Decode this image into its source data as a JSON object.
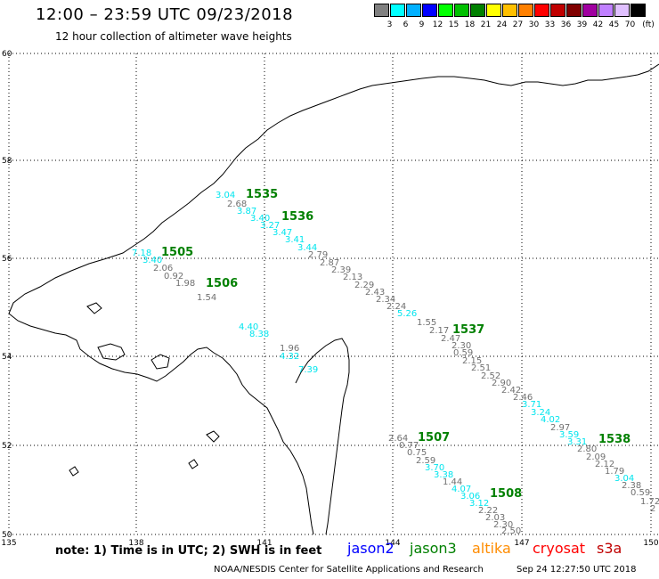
{
  "header": {
    "title": "12:00 – 23:59 UTC 09/23/2018",
    "subtitle": "12 hour collection of altimeter wave heights"
  },
  "legend": {
    "unit": "(ft)",
    "colors": [
      "#808080",
      "#00ffff",
      "#00b0ff",
      "#0000ff",
      "#00ff00",
      "#00c000",
      "#008000",
      "#ffff00",
      "#ffc000",
      "#ff8000",
      "#ff0000",
      "#c00000",
      "#800000",
      "#a000a0",
      "#c080ff",
      "#e0c0ff",
      "#000000"
    ],
    "labels": [
      "3",
      "6",
      "9",
      "12",
      "15",
      "18",
      "21",
      "24",
      "27",
      "30",
      "33",
      "36",
      "39",
      "42",
      "45",
      "70"
    ]
  },
  "axes": {
    "lat_labels": [
      "60",
      "58",
      "56",
      "54",
      "52",
      "50"
    ],
    "lon_labels": [
      "135",
      "138",
      "141",
      "144",
      "147",
      "150"
    ]
  },
  "passes": [
    {
      "label": "1535"
    },
    {
      "label": "1536"
    },
    {
      "label": "1505"
    },
    {
      "label": "1506"
    },
    {
      "label": "1537"
    },
    {
      "label": "1507"
    },
    {
      "label": "1538"
    },
    {
      "label": "1508"
    }
  ],
  "wave_heights": [
    {
      "v": "3.04",
      "c": "cyan"
    },
    {
      "v": "2.68",
      "c": "gray"
    },
    {
      "v": "3.87",
      "c": "cyan"
    },
    {
      "v": "3.40",
      "c": "cyan"
    },
    {
      "v": "3.27",
      "c": "cyan"
    },
    {
      "v": "3.47",
      "c": "cyan"
    },
    {
      "v": "3.41",
      "c": "cyan"
    },
    {
      "v": "3.44",
      "c": "cyan"
    },
    {
      "v": "2.79",
      "c": "gray"
    },
    {
      "v": "2.87",
      "c": "gray"
    },
    {
      "v": "2.39",
      "c": "gray"
    },
    {
      "v": "2.13",
      "c": "gray"
    },
    {
      "v": "2.29",
      "c": "gray"
    },
    {
      "v": "2.43",
      "c": "gray"
    },
    {
      "v": "2.34",
      "c": "gray"
    },
    {
      "v": "2.24",
      "c": "gray"
    },
    {
      "v": "5.26",
      "c": "cyan"
    },
    {
      "v": "1.55",
      "c": "gray"
    },
    {
      "v": "2.17",
      "c": "gray"
    },
    {
      "v": "2.47",
      "c": "gray"
    },
    {
      "v": "2.30",
      "c": "gray"
    },
    {
      "v": "0.59",
      "c": "gray"
    },
    {
      "v": "2.15",
      "c": "gray"
    },
    {
      "v": "2.51",
      "c": "gray"
    },
    {
      "v": "2.52",
      "c": "gray"
    },
    {
      "v": "2.90",
      "c": "gray"
    },
    {
      "v": "2.42",
      "c": "gray"
    },
    {
      "v": "2.46",
      "c": "gray"
    },
    {
      "v": "3.71",
      "c": "cyan"
    },
    {
      "v": "3.24",
      "c": "cyan"
    },
    {
      "v": "4.02",
      "c": "cyan"
    },
    {
      "v": "2.97",
      "c": "gray"
    },
    {
      "v": "3.59",
      "c": "cyan"
    },
    {
      "v": "3.31",
      "c": "cyan"
    },
    {
      "v": "2.80",
      "c": "gray"
    },
    {
      "v": "2.09",
      "c": "gray"
    },
    {
      "v": "2.12",
      "c": "gray"
    },
    {
      "v": "1.79",
      "c": "gray"
    },
    {
      "v": "3.04",
      "c": "cyan"
    },
    {
      "v": "2.38",
      "c": "gray"
    },
    {
      "v": "0.59",
      "c": "gray"
    },
    {
      "v": "1.72",
      "c": "gray"
    },
    {
      "v": "2",
      "c": "gray"
    },
    {
      "v": "7.18",
      "c": "cyan"
    },
    {
      "v": "3.40",
      "c": "cyan"
    },
    {
      "v": "2.06",
      "c": "gray"
    },
    {
      "v": "0.92",
      "c": "gray"
    },
    {
      "v": "1.98",
      "c": "gray"
    },
    {
      "v": "1.54",
      "c": "gray"
    },
    {
      "v": "4.40",
      "c": "cyan"
    },
    {
      "v": "8.38",
      "c": "cyan"
    },
    {
      "v": "1.96",
      "c": "gray"
    },
    {
      "v": "4.32",
      "c": "cyan"
    },
    {
      "v": "7.39",
      "c": "cyan"
    },
    {
      "v": "2.64",
      "c": "gray"
    },
    {
      "v": "0.77",
      "c": "gray"
    },
    {
      "v": "0.75",
      "c": "gray"
    },
    {
      "v": "2.59",
      "c": "gray"
    },
    {
      "v": "3.70",
      "c": "cyan"
    },
    {
      "v": "3.38",
      "c": "cyan"
    },
    {
      "v": "1.44",
      "c": "gray"
    },
    {
      "v": "4.07",
      "c": "cyan"
    },
    {
      "v": "3.06",
      "c": "cyan"
    },
    {
      "v": "3.12",
      "c": "cyan"
    },
    {
      "v": "2.22",
      "c": "gray"
    },
    {
      "v": "2.03",
      "c": "gray"
    },
    {
      "v": "2.30",
      "c": "gray"
    },
    {
      "v": "2.50",
      "c": "gray"
    }
  ],
  "colors": {
    "cyan": "#00e5ee",
    "gray": "#707070",
    "pass": "#008000",
    "grid": "#000000"
  },
  "footer": {
    "note": "note: 1) Time is in UTC; 2) SWH is in feet",
    "satellites": [
      {
        "name": "jason2",
        "color": "#0000ff"
      },
      {
        "name": "jason3",
        "color": "#008000"
      },
      {
        "name": "altika",
        "color": "#ff8c00"
      },
      {
        "name": "cryosat",
        "color": "#ff0000"
      },
      {
        "name": "s3a",
        "color": "#c00000"
      }
    ],
    "credit": "NOAA/NESDIS Center for Satellite Applications and Research",
    "timestamp": "Sep 24 12:27:50 UTC 2018"
  }
}
